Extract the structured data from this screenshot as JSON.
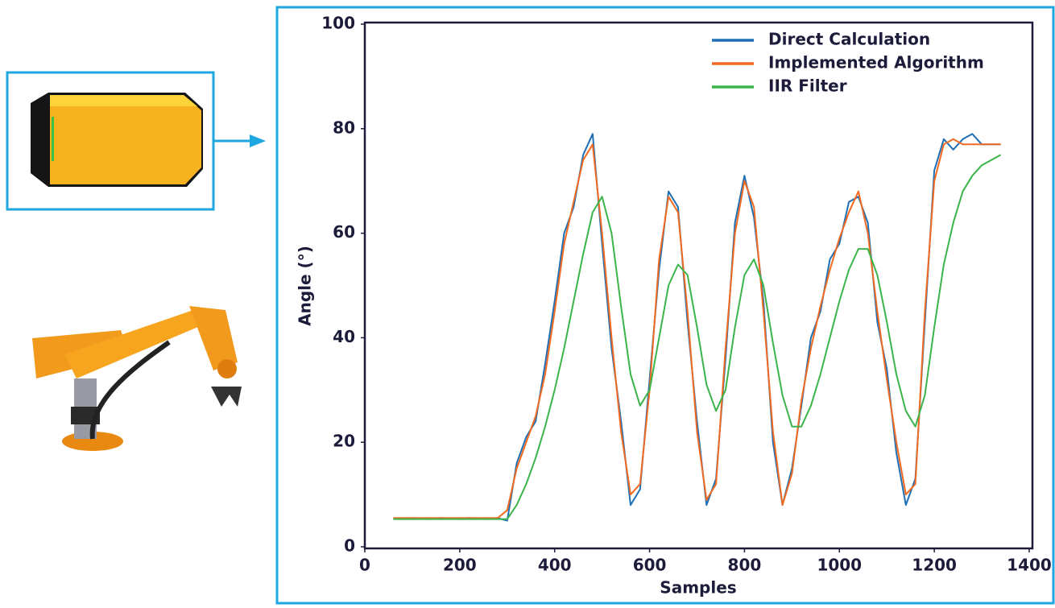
{
  "chart_data": {
    "type": "line",
    "xlabel": "Samples",
    "ylabel": "Angle (°)",
    "xlim": [
      0,
      1400
    ],
    "ylim": [
      0,
      100
    ],
    "xticks": [
      0,
      200,
      400,
      600,
      800,
      1000,
      1200,
      1400
    ],
    "yticks": [
      0,
      20,
      40,
      60,
      80,
      100
    ],
    "grid": false,
    "legend": "upper right",
    "x": [
      60,
      80,
      100,
      120,
      140,
      160,
      180,
      200,
      220,
      240,
      260,
      280,
      300,
      320,
      340,
      360,
      380,
      400,
      420,
      440,
      460,
      480,
      500,
      520,
      540,
      560,
      580,
      600,
      620,
      640,
      660,
      680,
      700,
      720,
      740,
      760,
      780,
      800,
      820,
      840,
      860,
      880,
      900,
      920,
      940,
      960,
      980,
      1000,
      1020,
      1040,
      1060,
      1080,
      1100,
      1120,
      1140,
      1160,
      1180,
      1200,
      1220,
      1240,
      1260,
      1280,
      1300,
      1320,
      1340
    ],
    "series": [
      {
        "name": "Direct Calculation",
        "color": "#1f6fb4",
        "values": [
          5.4,
          5.3,
          5.5,
          5.4,
          5.3,
          5.5,
          5.4,
          5.3,
          5.5,
          5.4,
          5.3,
          5.5,
          5,
          16,
          21,
          24,
          35,
          47,
          60,
          65,
          75,
          79,
          58,
          38,
          24,
          8,
          11,
          32,
          53,
          68,
          65,
          43,
          24,
          8,
          13,
          36,
          62,
          71,
          63,
          47,
          20,
          8,
          15,
          27,
          40,
          45,
          55,
          58,
          66,
          67,
          62,
          43,
          34,
          18,
          8,
          13,
          43,
          72,
          78,
          76,
          78,
          79,
          77,
          77,
          77
        ]
      },
      {
        "name": "Implemented Algorithm",
        "color": "#f26a21",
        "values": [
          5.5,
          5.5,
          5.5,
          5.5,
          5.5,
          5.5,
          5.5,
          5.5,
          5.5,
          5.5,
          5.5,
          5.5,
          7,
          15,
          20,
          25,
          33,
          45,
          58,
          66,
          74,
          77,
          60,
          40,
          22,
          10,
          12,
          30,
          55,
          67,
          64,
          45,
          22,
          9,
          12,
          38,
          60,
          70,
          65,
          45,
          22,
          8,
          14,
          28,
          38,
          46,
          53,
          59,
          64,
          68,
          60,
          45,
          32,
          20,
          10,
          12,
          45,
          70,
          77,
          78,
          77,
          77,
          77,
          77,
          77
        ]
      },
      {
        "name": "IIR Filter",
        "color": "#3bb54a",
        "values": [
          5.3,
          5.3,
          5.3,
          5.3,
          5.3,
          5.3,
          5.3,
          5.3,
          5.3,
          5.3,
          5.3,
          5.3,
          5.3,
          8,
          12,
          17,
          23,
          30,
          38,
          47,
          56,
          64,
          67,
          60,
          46,
          33,
          27,
          30,
          40,
          50,
          54,
          52,
          42,
          31,
          26,
          30,
          42,
          52,
          55,
          50,
          39,
          29,
          23,
          23,
          27,
          33,
          40,
          47,
          53,
          57,
          57,
          52,
          43,
          33,
          26,
          23,
          29,
          42,
          54,
          62,
          68,
          71,
          73,
          74,
          75
        ]
      }
    ]
  }
}
